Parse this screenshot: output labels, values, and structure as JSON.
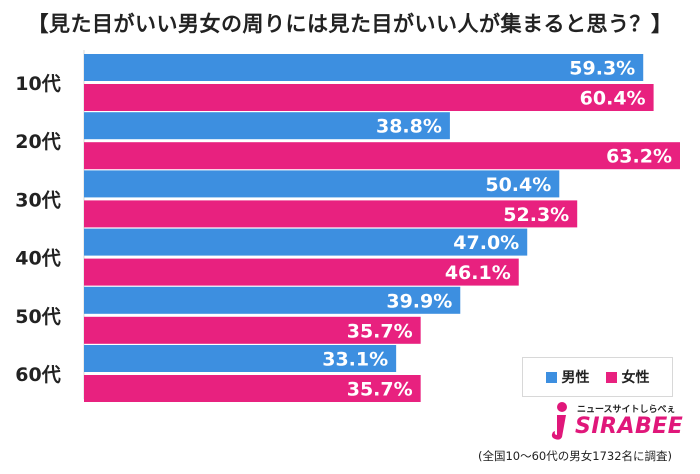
{
  "chart_data": {
    "type": "bar",
    "orientation": "horizontal",
    "title": "【見た目がいい男女の周りには見た目がいい人が集まると思う？】",
    "categories": [
      "10代",
      "20代",
      "30代",
      "40代",
      "50代",
      "60代"
    ],
    "series": [
      {
        "name": "男性",
        "color": "#3d8fe0",
        "values": [
          59.3,
          38.8,
          50.4,
          47.0,
          39.9,
          33.1
        ]
      },
      {
        "name": "女性",
        "color": "#e8217f",
        "values": [
          60.4,
          63.2,
          52.3,
          46.1,
          35.7,
          35.7
        ]
      }
    ],
    "value_suffix": "%",
    "xlim": [
      0,
      63.2
    ],
    "grid": false,
    "legend_position": "bottom-right"
  },
  "legend": {
    "male": "男性",
    "female": "女性"
  },
  "logo": {
    "tagline": "ニュースサイトしらべぇ",
    "name": "SIRABEE"
  },
  "footnote": "(全国10〜60代の男女1732名に調査)"
}
